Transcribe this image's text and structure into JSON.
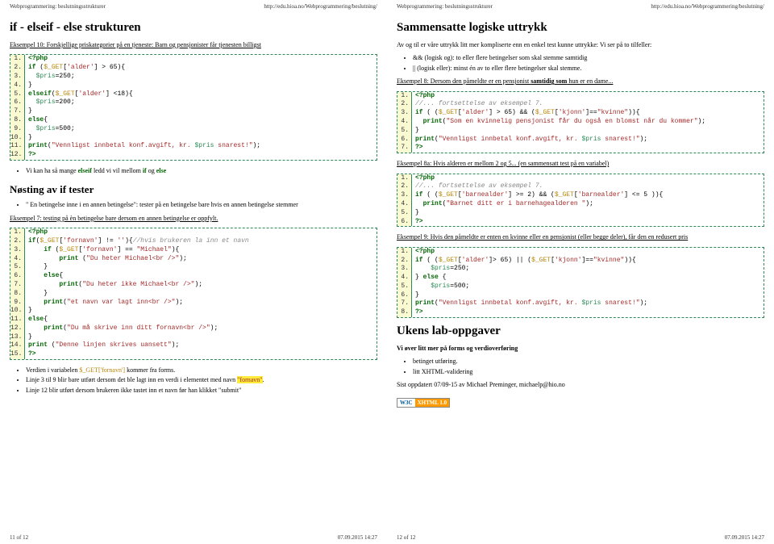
{
  "header": {
    "left": "Webprogrammering: beslutningsstrukturer",
    "right": "http://edu.hioa.no/Webprogrammering/beslutning/"
  },
  "leftPage": {
    "h1": "if - elseif - else strukturen",
    "ex10": "Eksempel 10: Forskjellige priskategorier på en tjeneste: Barn og pensjonister får tjenesten billigst",
    "note10": "Vi kan ha så mange",
    "note10b": " ledd vi vil mellom ",
    "h2": "Nøsting av if tester",
    "nest1": "\" En betingelse inne i en annen betingelse\": tester på en betingelse bare hvis en annen betingelse stemmer",
    "ex7": "Eksempel 7: testing på èn betingelse bare dersom en annen betingelse er oppfylt.",
    "b1": "Verdien i variabelen ",
    "b1b": " kommer fra forms.",
    "b2": "Linje 3 til 9 blir bare utført dersom det ble lagt inn en verdi i elementet med navn ",
    "b3": "Linje 12 blir utført dersom brukeren ikke tastet inn et navn før han klikket \"submit\"",
    "footer_left": "11 of 12",
    "footer_right": "07.09.2015 14:27"
  },
  "rightPage": {
    "h1": "Sammensatte logiske uttrykk",
    "intro": "Av og til er våre uttrykk litt mer kompliserte enn en enkel test kunne uttrykke: Vi ser på to tilfeller:",
    "bl1": "&& (logisk og): to eller flere betingelser som skal stemme samtidig",
    "bl2": "|| (logisk eller): minst én av to eller flere betingelser skal stemme.",
    "ex8": "Eksempel 8: Dersom den påmeldte er en pensjonist samtidig som hun er en dame...",
    "ex8a": "Eksempel 8a: Hvis alderen er mellom 2 og 5... (en sammensatt test på en variabel)",
    "ex9": "Eksempel 9:  Hvis den påmeldte er enten en kvinne eller en pensjonist (eller begge deler), får den en redusert pris",
    "h2": "Ukens lab-oppgaver",
    "lab1": "Vi øver litt mer på forms og verdioverføring",
    "lb1": "betinget utføring.",
    "lb2": "litt XHTML-validering",
    "updated": "Sist oppdatert 07/09-15 av Michael Preminger, michaelp@hio.no",
    "w3c_l": "W3C",
    "w3c_r": "XHTML 1.0",
    "footer_left": "12 of 12",
    "footer_right": "07.09.2015 14:27"
  },
  "code10": [
    {
      "n": "1.",
      "t": "<?php",
      "cls": "c-kw"
    },
    {
      "n": "2.",
      "html": "<span class='c-kw'>if</span> (<span class='c-sys'>$_GET</span>[<span class='c-str'>'alder'</span>] &gt; 65){"
    },
    {
      "n": "3.",
      "html": "  <span class='c-var'>$pris</span>=250;"
    },
    {
      "n": "4.",
      "t": "}"
    },
    {
      "n": "5.",
      "html": "<span class='c-kw'>elseif</span>(<span class='c-sys'>$_GET</span>[<span class='c-str'>'alder'</span>] &lt;18){"
    },
    {
      "n": "6.",
      "html": "  <span class='c-var'>$pris</span>=200;"
    },
    {
      "n": "7.",
      "t": "}"
    },
    {
      "n": "8.",
      "html": "<span class='c-kw'>else</span>{"
    },
    {
      "n": "9.",
      "html": "  <span class='c-var'>$pris</span>=500;"
    },
    {
      "n": "10.",
      "t": "}"
    },
    {
      "n": "11.",
      "html": "<span class='c-kw'>print</span>(<span class='c-str'>\"Vennligst innbetal konf.avgift, kr. </span><span class='c-var'>$pris</span><span class='c-str'> snarest!\"</span>);"
    },
    {
      "n": "12.",
      "t": "?>",
      "cls": "c-kw"
    }
  ],
  "code7_2": [
    {
      "n": "1.",
      "t": "<?php",
      "cls": "c-kw"
    },
    {
      "n": "2.",
      "html": "<span class='c-kw'>if</span>(<span class='c-sys'>$_GET</span>[<span class='c-str'>'fornavn'</span>] != <span class='c-str'>''</span>){<span class='c-cm'>//hvis brukeren la inn et navn</span>"
    },
    {
      "n": "3.",
      "html": "    <span class='c-kw'>if</span> (<span class='c-sys'>$_GET</span>[<span class='c-str'>'fornavn'</span>] == <span class='c-str'>\"Michael\"</span>){"
    },
    {
      "n": "4.",
      "html": "        <span class='c-kw'>print</span> (<span class='c-str'>\"Du heter Michael&lt;br /&gt;\"</span>);"
    },
    {
      "n": "5.",
      "t": "    }"
    },
    {
      "n": "6.",
      "html": "    <span class='c-kw'>else</span>{"
    },
    {
      "n": "7.",
      "html": "        <span class='c-kw'>print</span>(<span class='c-str'>\"Du heter ikke Michael&lt;br /&gt;\"</span>);"
    },
    {
      "n": "8.",
      "t": "    }"
    },
    {
      "n": "9.",
      "html": "    <span class='c-kw'>print</span>(<span class='c-str'>\"et navn var lagt inn&lt;br /&gt;\"</span>);"
    },
    {
      "n": "10.",
      "t": "}"
    },
    {
      "n": "11.",
      "html": "<span class='c-kw'>else</span>{"
    },
    {
      "n": "12.",
      "html": "    <span class='c-kw'>print</span>(<span class='c-str'>\"Du må skrive inn ditt fornavn&lt;br /&gt;\"</span>);"
    },
    {
      "n": "13.",
      "t": "}"
    },
    {
      "n": "14.",
      "html": "<span class='c-kw'>print</span> (<span class='c-str'>\"Denne linjen skrives uansett\"</span>);"
    },
    {
      "n": "15.",
      "t": "?>",
      "cls": "c-kw"
    }
  ],
  "code8": [
    {
      "n": "1.",
      "t": "<?php",
      "cls": "c-kw"
    },
    {
      "n": "2.",
      "html": "<span class='c-cm'>//... fortsettelse av eksempel 7.</span>"
    },
    {
      "n": "3.",
      "html": "<span class='c-kw'>if</span> ( (<span class='c-sys'>$_GET</span>[<span class='c-str'>'alder'</span>] &gt; 65) &amp;&amp; (<span class='c-sys'>$_GET</span>[<span class='c-str'>'kjonn'</span>]==<span class='c-str'>\"kvinne\"</span>)){"
    },
    {
      "n": "4.",
      "html": "  <span class='c-kw'>print</span>(<span class='c-str'>\"Som en kvinnelig pensjonist får du også en blomst når du kommer\"</span>);"
    },
    {
      "n": "5.",
      "t": "}"
    },
    {
      "n": "6.",
      "html": "<span class='c-kw'>print</span>(<span class='c-str'>\"Vennligst innbetal konf.avgift, kr. </span><span class='c-var'>$pris</span><span class='c-str'> snarest!\"</span>);"
    },
    {
      "n": "7.",
      "t": "?>",
      "cls": "c-kw"
    }
  ],
  "code8a": [
    {
      "n": "1.",
      "t": "<?php",
      "cls": "c-kw"
    },
    {
      "n": "2.",
      "html": "<span class='c-cm'>//... fortsettelse av eksempel 7.</span>"
    },
    {
      "n": "3.",
      "html": "<span class='c-kw'>if</span> ( (<span class='c-sys'>$_GET</span>[<span class='c-str'>'barnealder'</span>] &gt;= 2) &amp;&amp; (<span class='c-sys'>$_GET</span>[<span class='c-str'>'barnealder'</span>] &lt;= 5 )){"
    },
    {
      "n": "4.",
      "html": "  <span class='c-kw'>print</span>(<span class='c-str'>\"Barnet ditt er i barnehagealderen \"</span>);"
    },
    {
      "n": "5.",
      "t": "}"
    },
    {
      "n": "6.",
      "t": "?>",
      "cls": "c-kw"
    }
  ],
  "code9": [
    {
      "n": "1.",
      "t": "<?php",
      "cls": "c-kw"
    },
    {
      "n": "2.",
      "html": "<span class='c-kw'>if</span> ( (<span class='c-sys'>$_GET</span>[<span class='c-str'>'alder'</span>]&gt; 65) || (<span class='c-sys'>$_GET</span>[<span class='c-str'>'kjonn'</span>]==<span class='c-str'>\"kvinne\"</span>)){"
    },
    {
      "n": "3.",
      "html": "    <span class='c-var'>$pris</span>=250;"
    },
    {
      "n": "4.",
      "html": "} <span class='c-kw'>else</span> {"
    },
    {
      "n": "5.",
      "html": "    <span class='c-var'>$pris</span>=500;"
    },
    {
      "n": "6.",
      "t": "}"
    },
    {
      "n": "7.",
      "html": "<span class='c-kw'>print</span>(<span class='c-str'>\"Vennligst innbetal konf.avgift, kr. </span><span class='c-var'>$pris</span><span class='c-str'> snarest!\"</span>);"
    },
    {
      "n": "8.",
      "t": "?>",
      "cls": "c-kw"
    }
  ]
}
